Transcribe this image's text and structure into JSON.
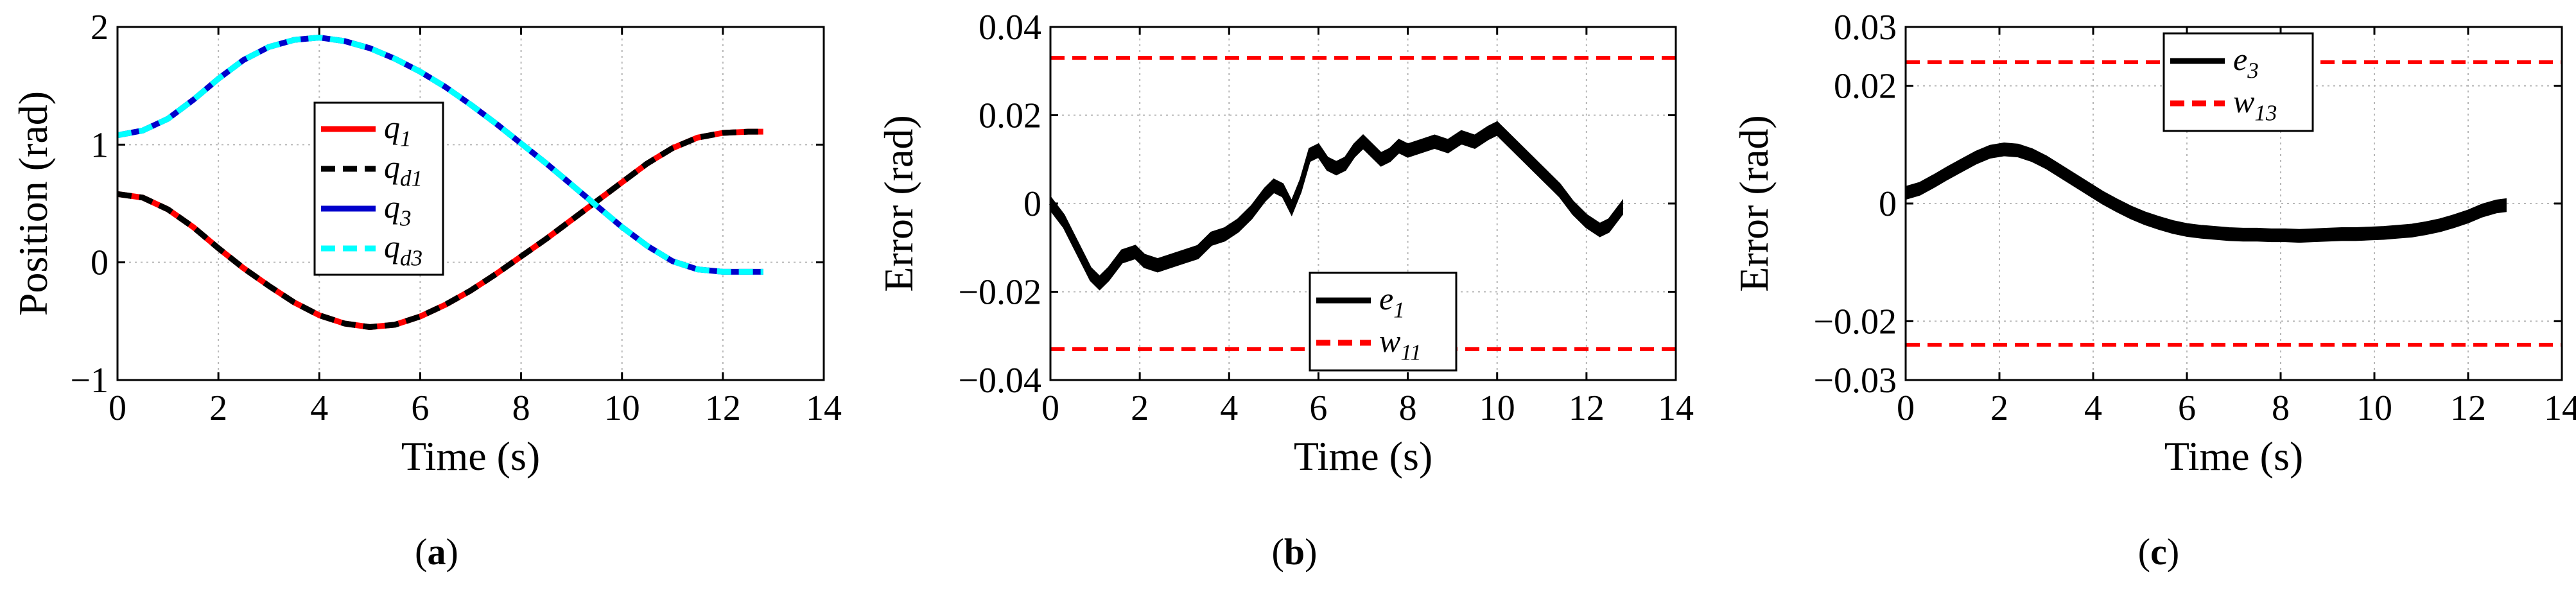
{
  "chart_data": [
    {
      "type": "line",
      "panel_label": "a",
      "xlabel": "Time (s)",
      "ylabel": "Position (rad)",
      "xlim": [
        0,
        14
      ],
      "ylim": [
        -1,
        2
      ],
      "xticks": [
        0,
        2,
        4,
        6,
        8,
        10,
        12,
        14
      ],
      "yticks": [
        -1,
        0,
        1,
        2
      ],
      "grid": true,
      "legend_position": "center",
      "series": [
        {
          "name": "q_1",
          "base": "q",
          "sub": "1",
          "color": "#ff0000",
          "style": "solid",
          "x": [
            0,
            0.5,
            1,
            1.5,
            2,
            2.5,
            3,
            3.5,
            4,
            4.5,
            5,
            5.5,
            6,
            6.5,
            7,
            7.5,
            8,
            8.5,
            9,
            9.5,
            10,
            10.5,
            11,
            11.5,
            12,
            12.5,
            12.8
          ],
          "y": [
            0.58,
            0.55,
            0.45,
            0.3,
            0.12,
            -0.05,
            -0.2,
            -0.34,
            -0.45,
            -0.52,
            -0.55,
            -0.53,
            -0.46,
            -0.36,
            -0.24,
            -0.1,
            0.05,
            0.2,
            0.36,
            0.52,
            0.68,
            0.84,
            0.97,
            1.06,
            1.1,
            1.11,
            1.11
          ]
        },
        {
          "name": "q_d1",
          "base": "q",
          "sub": "d1",
          "color": "#000000",
          "style": "dashed",
          "x": [
            0,
            0.5,
            1,
            1.5,
            2,
            2.5,
            3,
            3.5,
            4,
            4.5,
            5,
            5.5,
            6,
            6.5,
            7,
            7.5,
            8,
            8.5,
            9,
            9.5,
            10,
            10.5,
            11,
            11.5,
            12,
            12.5,
            12.8
          ],
          "y": [
            0.58,
            0.55,
            0.45,
            0.3,
            0.12,
            -0.05,
            -0.2,
            -0.34,
            -0.45,
            -0.52,
            -0.55,
            -0.53,
            -0.46,
            -0.36,
            -0.24,
            -0.1,
            0.05,
            0.2,
            0.36,
            0.52,
            0.68,
            0.84,
            0.97,
            1.06,
            1.1,
            1.11,
            1.11
          ]
        },
        {
          "name": "q_3",
          "base": "q",
          "sub": "3",
          "color": "#0000cc",
          "style": "solid",
          "x": [
            0,
            0.5,
            1,
            1.5,
            2,
            2.5,
            3,
            3.5,
            4,
            4.5,
            5,
            5.5,
            6,
            6.5,
            7,
            7.5,
            8,
            8.5,
            9,
            9.5,
            10,
            10.5,
            11,
            11.5,
            12,
            12.5,
            12.8
          ],
          "y": [
            1.08,
            1.12,
            1.22,
            1.38,
            1.56,
            1.72,
            1.83,
            1.89,
            1.91,
            1.88,
            1.82,
            1.73,
            1.62,
            1.49,
            1.34,
            1.18,
            1.01,
            0.84,
            0.66,
            0.48,
            0.3,
            0.14,
            0.01,
            -0.06,
            -0.08,
            -0.08,
            -0.08
          ]
        },
        {
          "name": "q_d3",
          "base": "q",
          "sub": "d3",
          "color": "#00ffff",
          "style": "dashed",
          "x": [
            0,
            0.5,
            1,
            1.5,
            2,
            2.5,
            3,
            3.5,
            4,
            4.5,
            5,
            5.5,
            6,
            6.5,
            7,
            7.5,
            8,
            8.5,
            9,
            9.5,
            10,
            10.5,
            11,
            11.5,
            12,
            12.5,
            12.8
          ],
          "y": [
            1.08,
            1.12,
            1.22,
            1.38,
            1.56,
            1.72,
            1.83,
            1.89,
            1.91,
            1.88,
            1.82,
            1.73,
            1.62,
            1.49,
            1.34,
            1.18,
            1.01,
            0.84,
            0.66,
            0.48,
            0.3,
            0.14,
            0.01,
            -0.06,
            -0.08,
            -0.08,
            -0.08
          ]
        }
      ]
    },
    {
      "type": "line",
      "panel_label": "b",
      "xlabel": "Time (s)",
      "ylabel": "Error (rad)",
      "xlim": [
        0,
        14
      ],
      "ylim": [
        -0.04,
        0.04
      ],
      "xticks": [
        0,
        2,
        4,
        6,
        8,
        10,
        12,
        14
      ],
      "yticks": [
        -0.04,
        -0.02,
        0,
        0.02,
        0.04
      ],
      "yticklabels": [
        "-0.04",
        "-0.02",
        "0",
        "0.02",
        "0.04"
      ],
      "grid": true,
      "legend_position": "bottom-center",
      "series": [
        {
          "name": "e_1",
          "base": "e",
          "sub": "1",
          "color": "#000000",
          "style": "solid",
          "band": 0.0014,
          "x": [
            0,
            0.3,
            0.6,
            0.9,
            1.1,
            1.3,
            1.6,
            1.9,
            2.1,
            2.4,
            2.7,
            3.0,
            3.3,
            3.6,
            3.9,
            4.2,
            4.5,
            4.8,
            5.0,
            5.2,
            5.4,
            5.6,
            5.8,
            6.0,
            6.2,
            6.4,
            6.6,
            6.8,
            7.0,
            7.2,
            7.4,
            7.6,
            7.8,
            8.0,
            8.3,
            8.6,
            8.9,
            9.2,
            9.5,
            9.8,
            10.0,
            10.2,
            10.5,
            10.8,
            11.1,
            11.4,
            11.7,
            12.0,
            12.3,
            12.5,
            12.8
          ],
          "y": [
            0,
            -0.004,
            -0.01,
            -0.016,
            -0.018,
            -0.016,
            -0.012,
            -0.011,
            -0.013,
            -0.014,
            -0.013,
            -0.012,
            -0.011,
            -0.008,
            -0.007,
            -0.005,
            -0.002,
            0.002,
            0.004,
            0.003,
            -0.001,
            0.004,
            0.011,
            0.012,
            0.009,
            0.008,
            0.009,
            0.012,
            0.014,
            0.012,
            0.01,
            0.011,
            0.013,
            0.012,
            0.013,
            0.014,
            0.013,
            0.015,
            0.014,
            0.016,
            0.017,
            0.015,
            0.012,
            0.009,
            0.006,
            0.003,
            -0.001,
            -0.004,
            -0.006,
            -0.005,
            -0.001
          ]
        },
        {
          "name": "w_11",
          "base": "w",
          "sub": "11",
          "color": "#ff0000",
          "style": "dashed",
          "bounds": [
            0.033,
            -0.033
          ]
        }
      ]
    },
    {
      "type": "line",
      "panel_label": "c",
      "xlabel": "Time (s)",
      "ylabel": "Error (rad)",
      "xlim": [
        0,
        14
      ],
      "ylim": [
        -0.03,
        0.03
      ],
      "xticks": [
        0,
        2,
        4,
        6,
        8,
        10,
        12,
        14
      ],
      "yticks": [
        -0.03,
        -0.02,
        0,
        0.02,
        0.03
      ],
      "yticklabels": [
        "-0.03",
        "-0.02",
        "0",
        "0.02",
        "0.03"
      ],
      "grid": true,
      "legend_position": "top-center",
      "series": [
        {
          "name": "e_3",
          "base": "e",
          "sub": "3",
          "color": "#000000",
          "style": "solid",
          "band": 0.001,
          "x": [
            0,
            0.3,
            0.6,
            0.9,
            1.2,
            1.5,
            1.8,
            2.1,
            2.4,
            2.7,
            3.0,
            3.3,
            3.6,
            3.9,
            4.2,
            4.5,
            4.8,
            5.1,
            5.4,
            5.7,
            6.0,
            6.3,
            6.6,
            6.9,
            7.2,
            7.5,
            7.8,
            8.1,
            8.4,
            8.7,
            9.0,
            9.3,
            9.6,
            9.9,
            10.2,
            10.5,
            10.8,
            11.1,
            11.4,
            11.7,
            12.0,
            12.3,
            12.6,
            12.8
          ],
          "y": [
            0.0018,
            0.0025,
            0.0038,
            0.0052,
            0.0065,
            0.0078,
            0.0088,
            0.0092,
            0.009,
            0.0082,
            0.007,
            0.0055,
            0.004,
            0.0025,
            0.001,
            -0.0003,
            -0.0015,
            -0.0025,
            -0.0033,
            -0.004,
            -0.0045,
            -0.0048,
            -0.005,
            -0.0052,
            -0.0053,
            -0.0053,
            -0.0054,
            -0.0054,
            -0.0055,
            -0.0054,
            -0.0053,
            -0.0052,
            -0.0052,
            -0.0051,
            -0.005,
            -0.0048,
            -0.0046,
            -0.0042,
            -0.0037,
            -0.003,
            -0.0022,
            -0.0012,
            -0.0005,
            -0.0003
          ]
        },
        {
          "name": "w_13",
          "base": "w",
          "sub": "13",
          "color": "#ff0000",
          "style": "dashed",
          "bounds": [
            0.024,
            -0.024
          ]
        }
      ]
    }
  ]
}
